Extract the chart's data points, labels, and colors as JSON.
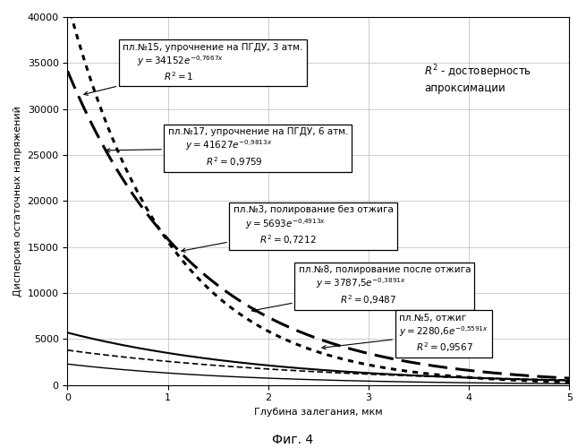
{
  "title": "",
  "xlabel": "Глубина залегания, мкм",
  "ylabel": "Дисперсия остаточных напряжений",
  "fig_caption": "Фиг. 4",
  "annotation_top_right": "R² - достоверность\nапроксимации",
  "xlim": [
    0,
    5
  ],
  "ylim": [
    0,
    40000
  ],
  "yticks": [
    0,
    5000,
    10000,
    15000,
    20000,
    25000,
    30000,
    35000,
    40000
  ],
  "xticks": [
    0,
    1,
    2,
    3,
    4,
    5
  ],
  "curves": [
    {
      "A": 34152,
      "b": 0.7667,
      "linewidth": 2.2,
      "linestyle_key": "longdash"
    },
    {
      "A": 41627,
      "b": 0.9813,
      "linewidth": 2.2,
      "linestyle_key": "dotted"
    },
    {
      "A": 5693,
      "b": 0.4913,
      "linewidth": 1.5,
      "linestyle_key": "solid"
    },
    {
      "A": 3787.5,
      "b": 0.3891,
      "linewidth": 1.2,
      "linestyle_key": "shortdash"
    },
    {
      "A": 2280.6,
      "b": 0.5591,
      "linewidth": 1.0,
      "linestyle_key": "solid"
    }
  ],
  "background_color": "#ffffff",
  "grid_color": "#bbbbbb"
}
